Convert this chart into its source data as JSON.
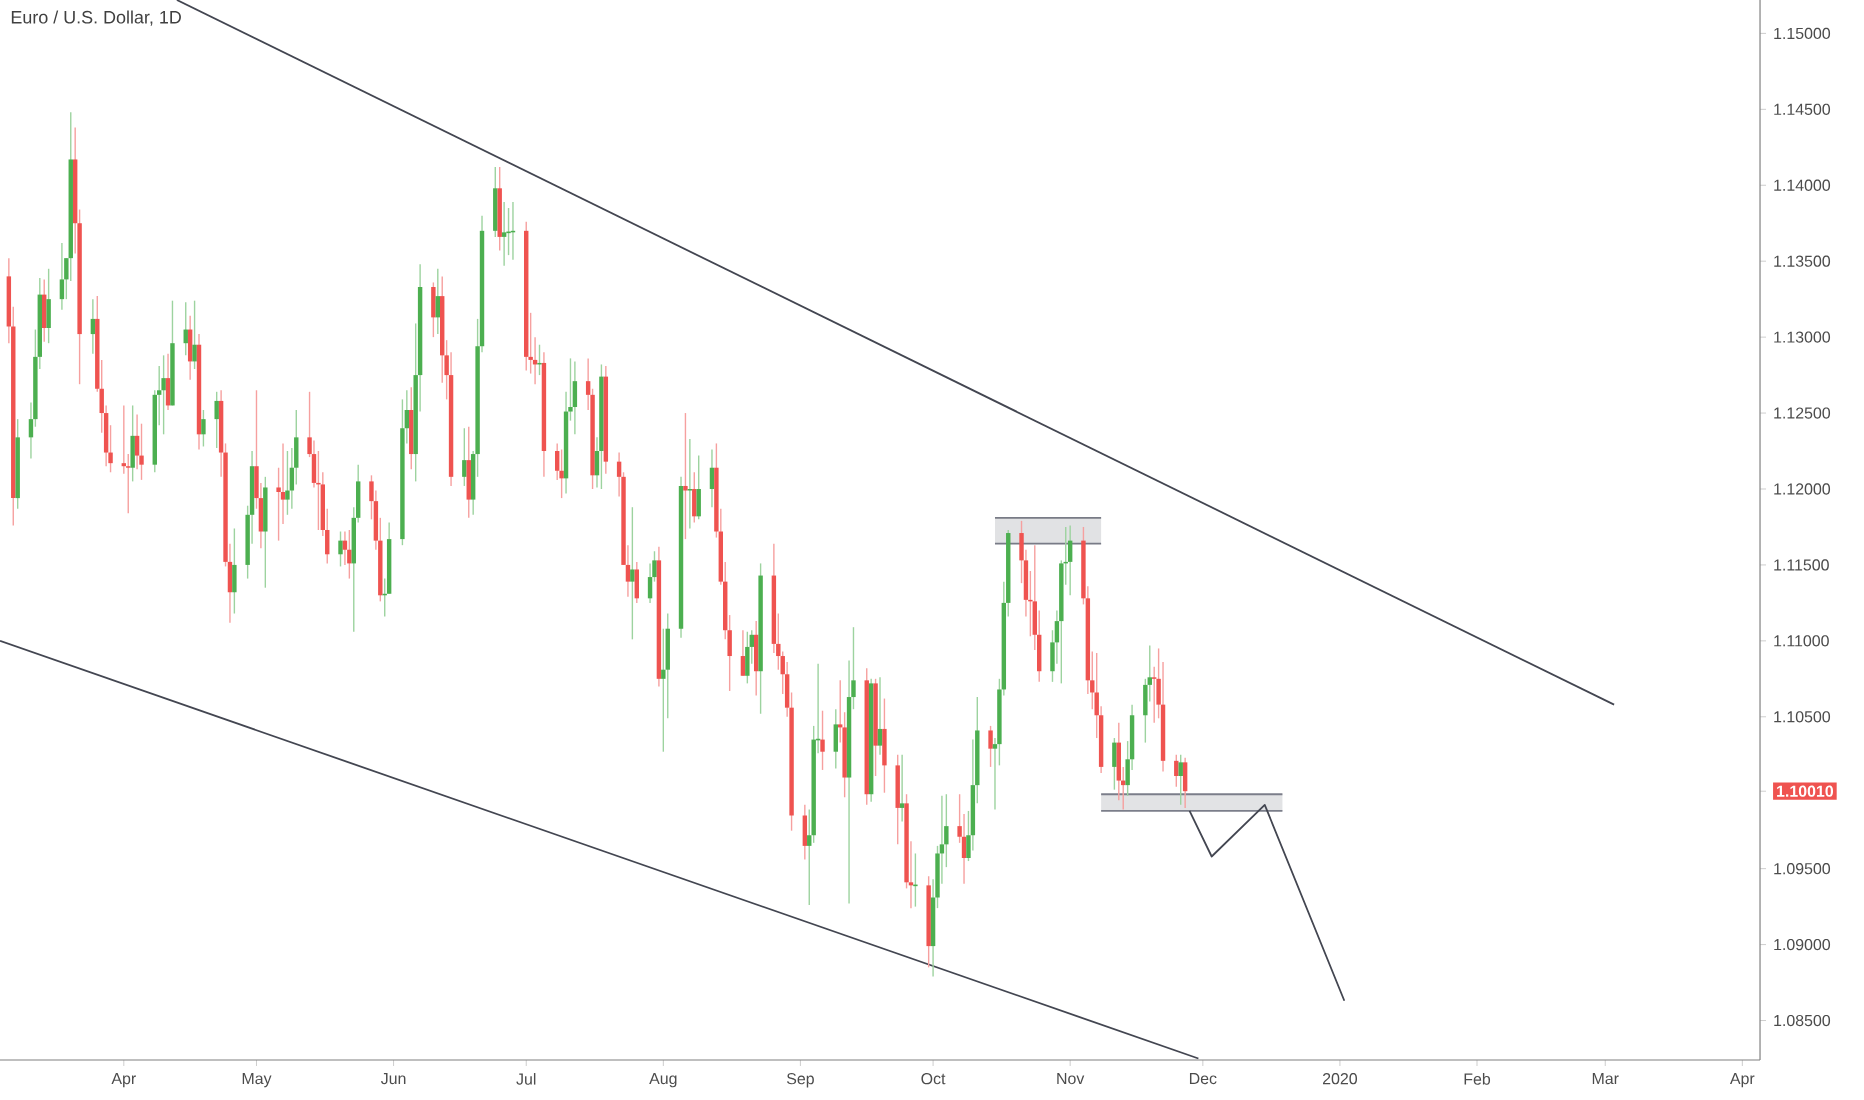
{
  "chart_data": {
    "type": "candlestick",
    "title": "Euro / U.S. Dollar, 1D",
    "colors": [
      "#ef5350",
      "#ef5350",
      "#4caf50",
      "#4caf50",
      "#4caf50",
      "#4caf50",
      "#ef5350",
      "#4caf50",
      "#4caf50",
      "#4caf50",
      "#4caf50",
      "#ef5350",
      "#ef5350",
      "#4caf50",
      "#ef5350",
      "#ef5350",
      "#ef5350",
      "#ef5350",
      "#ef5350",
      "#ef5350",
      "#4caf50",
      "#ef5350",
      "#ef5350",
      "#4caf50",
      "#4caf50",
      "#4caf50",
      "#ef5350",
      "#4caf50",
      "#4caf50",
      "#ef5350",
      "#4caf50",
      "#ef5350",
      "#4caf50",
      "#4caf50",
      "#ef5350",
      "#ef5350",
      "#ef5350",
      "#4caf50",
      "#4caf50",
      "#4caf50",
      "#ef5350",
      "#ef5350",
      "#4caf50",
      "#ef5350",
      "#ef5350",
      "#4caf50",
      "#4caf50",
      "#4caf50",
      "#ef5350",
      "#ef5350",
      "#ef5350",
      "#ef5350",
      "#ef5350",
      "#4caf50",
      "#ef5350",
      "#ef5350",
      "#4caf50",
      "#4caf50",
      "#ef5350",
      "#ef5350",
      "#ef5350",
      "#4caf50",
      "#4caf50",
      "#4caf50",
      "#4caf50",
      "#ef5350",
      "#4caf50",
      "#4caf50",
      "#ef5350",
      "#4caf50",
      "#ef5350",
      "#ef5350",
      "#ef5350",
      "#4caf50",
      "#ef5350",
      "#4caf50",
      "#4caf50",
      "#4caf50",
      "#4caf50",
      "#ef5350",
      "#4caf50",
      "#4caf50",
      "#4caf50",
      "#ef5350",
      "#ef5350",
      "#ef5350",
      "#4caf50",
      "#ef5350",
      "#ef5350",
      "#ef5350",
      "#4caf50",
      "#4caf50",
      "#4caf50",
      "#ef5350",
      "#ef5350",
      "#4caf50",
      "#4caf50",
      "#ef5350",
      "#ef5350",
      "#ef5350",
      "#ef5350",
      "#4caf50",
      "#ef5350",
      "#4caf50",
      "#4caf50",
      "#ef5350",
      "#4caf50",
      "#4caf50",
      "#4caf50",
      "#ef5350",
      "#4caf50",
      "#ef5350",
      "#4caf50",
      "#4caf50",
      "#ef5350",
      "#ef5350",
      "#ef5350",
      "#ef5350",
      "#ef5350",
      "#4caf50",
      "#4caf50",
      "#ef5350",
      "#4caf50",
      "#ef5350",
      "#ef5350",
      "#ef5350",
      "#ef5350",
      "#ef5350",
      "#ef5350",
      "#4caf50",
      "#4caf50",
      "#4caf50",
      "#ef5350",
      "#4caf50",
      "#ef5350",
      "#ef5350",
      "#4caf50",
      "#4caf50",
      "#ef5350",
      "#4caf50",
      "#ef5350",
      "#4caf50",
      "#ef5350",
      "#ef5350",
      "#4caf50",
      "#ef5350",
      "#ef5350",
      "#4caf50",
      "#ef5350",
      "#4caf50",
      "#4caf50",
      "#4caf50",
      "#4caf50",
      "#ef5350",
      "#ef5350",
      "#4caf50",
      "#4caf50",
      "#4caf50",
      "#ef5350",
      "#4caf50",
      "#4caf50",
      "#4caf50",
      "#4caf50",
      "#ef5350",
      "#ef5350",
      "#ef5350",
      "#ef5350",
      "#ef5350",
      "#4caf50",
      "#4caf50",
      "#4caf50",
      "#4caf50",
      "#4caf50",
      "#ef5350",
      "#ef5350",
      "#ef5350",
      "#ef5350",
      "#ef5350",
      "#4caf50",
      "#ef5350",
      "#ef5350",
      "#4caf50",
      "#4caf50",
      "#4caf50",
      "#4caf50",
      "#ef5350",
      "#ef5350",
      "#ef5350",
      "#ef5350",
      "#4caf50",
      "#ef5350"
    ],
    "xlim": [
      "2019-03-04",
      "2020-04-05"
    ],
    "ylim": [
      1.0824,
      1.1522
    ],
    "xticks": [
      {
        "value": "2019-04-01",
        "label": "Apr"
      },
      {
        "value": "2019-05-01",
        "label": "May"
      },
      {
        "value": "2019-06-01",
        "label": "Jun"
      },
      {
        "value": "2019-07-01",
        "label": "Jul"
      },
      {
        "value": "2019-08-01",
        "label": "Aug"
      },
      {
        "value": "2019-09-01",
        "label": "Sep"
      },
      {
        "value": "2019-10-01",
        "label": "Oct"
      },
      {
        "value": "2019-11-01",
        "label": "Nov"
      },
      {
        "value": "2019-12-01",
        "label": "Dec"
      },
      {
        "value": "2020-01-01",
        "label": "2020"
      },
      {
        "value": "2020-02-01",
        "label": "Feb"
      },
      {
        "value": "2020-03-01",
        "label": "Mar"
      },
      {
        "value": "2020-04-01",
        "label": "Apr"
      }
    ],
    "yticks": [
      {
        "value": 1.085,
        "label": "1.08500"
      },
      {
        "value": 1.09,
        "label": "1.09000"
      },
      {
        "value": 1.095,
        "label": "1.09500"
      },
      {
        "value": 1.1001,
        "label": "1.10010"
      },
      {
        "value": 1.105,
        "label": "1.10500"
      },
      {
        "value": 1.11,
        "label": "1.11000"
      },
      {
        "value": 1.115,
        "label": "1.11500"
      },
      {
        "value": 1.12,
        "label": "1.12000"
      },
      {
        "value": 1.125,
        "label": "1.12500"
      },
      {
        "value": 1.13,
        "label": "1.13000"
      },
      {
        "value": 1.135,
        "label": "1.13500"
      },
      {
        "value": 1.14,
        "label": "1.14000"
      },
      {
        "value": 1.145,
        "label": "1.14500"
      },
      {
        "value": 1.15,
        "label": "1.15000"
      }
    ],
    "x": [
      "2019-03-06",
      "2019-03-07",
      "2019-03-08",
      "2019-03-11",
      "2019-03-12",
      "2019-03-13",
      "2019-03-14",
      "2019-03-15",
      "2019-03-18",
      "2019-03-19",
      "2019-03-20",
      "2019-03-21",
      "2019-03-22",
      "2019-03-25",
      "2019-03-26",
      "2019-03-27",
      "2019-03-28",
      "2019-03-29",
      "2019-04-01",
      "2019-04-02",
      "2019-04-03",
      "2019-04-04",
      "2019-04-05",
      "2019-04-08",
      "2019-04-09",
      "2019-04-10",
      "2019-04-11",
      "2019-04-12",
      "2019-04-15",
      "2019-04-16",
      "2019-04-17",
      "2019-04-18",
      "2019-04-19",
      "2019-04-22",
      "2019-04-23",
      "2019-04-24",
      "2019-04-25",
      "2019-04-26",
      "2019-04-29",
      "2019-04-30",
      "2019-05-01",
      "2019-05-02",
      "2019-05-03",
      "2019-05-06",
      "2019-05-07",
      "2019-05-08",
      "2019-05-09",
      "2019-05-10",
      "2019-05-13",
      "2019-05-14",
      "2019-05-15",
      "2019-05-16",
      "2019-05-17",
      "2019-05-20",
      "2019-05-21",
      "2019-05-22",
      "2019-05-23",
      "2019-05-24",
      "2019-05-27",
      "2019-05-28",
      "2019-05-29",
      "2019-05-30",
      "2019-05-31",
      "2019-06-03",
      "2019-06-04",
      "2019-06-05",
      "2019-06-06",
      "2019-06-07",
      "2019-06-10",
      "2019-06-11",
      "2019-06-12",
      "2019-06-13",
      "2019-06-14",
      "2019-06-17",
      "2019-06-18",
      "2019-06-19",
      "2019-06-20",
      "2019-06-21",
      "2019-06-24",
      "2019-06-25",
      "2019-06-26",
      "2019-06-27",
      "2019-06-28",
      "2019-07-01",
      "2019-07-02",
      "2019-07-03",
      "2019-07-04",
      "2019-07-05",
      "2019-07-08",
      "2019-07-09",
      "2019-07-10",
      "2019-07-11",
      "2019-07-12",
      "2019-07-15",
      "2019-07-16",
      "2019-07-17",
      "2019-07-18",
      "2019-07-19",
      "2019-07-22",
      "2019-07-23",
      "2019-07-24",
      "2019-07-25",
      "2019-07-26",
      "2019-07-29",
      "2019-07-30",
      "2019-07-31",
      "2019-08-01",
      "2019-08-02",
      "2019-08-05",
      "2019-08-06",
      "2019-08-07",
      "2019-08-08",
      "2019-08-09",
      "2019-08-12",
      "2019-08-13",
      "2019-08-14",
      "2019-08-15",
      "2019-08-16",
      "2019-08-19",
      "2019-08-20",
      "2019-08-21",
      "2019-08-22",
      "2019-08-23",
      "2019-08-26",
      "2019-08-27",
      "2019-08-28",
      "2019-08-29",
      "2019-08-30",
      "2019-09-02",
      "2019-09-03",
      "2019-09-04",
      "2019-09-05",
      "2019-09-06",
      "2019-09-09",
      "2019-09-10",
      "2019-09-11",
      "2019-09-12",
      "2019-09-13",
      "2019-09-16",
      "2019-09-17",
      "2019-09-18",
      "2019-09-19",
      "2019-09-20",
      "2019-09-23",
      "2019-09-24",
      "2019-09-25",
      "2019-09-26",
      "2019-09-27",
      "2019-09-30",
      "2019-10-01",
      "2019-10-02",
      "2019-10-03",
      "2019-10-04",
      "2019-10-07",
      "2019-10-08",
      "2019-10-09",
      "2019-10-10",
      "2019-10-11",
      "2019-10-14",
      "2019-10-15",
      "2019-10-16",
      "2019-10-17",
      "2019-10-18",
      "2019-10-21",
      "2019-10-22",
      "2019-10-23",
      "2019-10-24",
      "2019-10-25",
      "2019-10-28",
      "2019-10-29",
      "2019-10-30",
      "2019-10-31",
      "2019-11-01",
      "2019-11-04",
      "2019-11-05",
      "2019-11-06",
      "2019-11-07",
      "2019-11-08",
      "2019-11-11",
      "2019-11-12",
      "2019-11-13",
      "2019-11-14",
      "2019-11-15",
      "2019-11-18",
      "2019-11-19",
      "2019-11-20",
      "2019-11-21",
      "2019-11-22",
      "2019-11-25",
      "2019-11-26",
      "2019-11-27"
    ],
    "ohlc": [
      [
        1.134,
        1.1352,
        1.1296,
        1.1307
      ],
      [
        1.1307,
        1.132,
        1.1176,
        1.1194
      ],
      [
        1.1194,
        1.1246,
        1.1187,
        1.1234
      ],
      [
        1.1234,
        1.1257,
        1.122,
        1.1246
      ],
      [
        1.1246,
        1.1305,
        1.1241,
        1.1287
      ],
      [
        1.1287,
        1.1339,
        1.1279,
        1.1328
      ],
      [
        1.1328,
        1.1338,
        1.1297,
        1.1306
      ],
      [
        1.1306,
        1.1345,
        1.1296,
        1.1325
      ],
      [
        1.1325,
        1.1362,
        1.1318,
        1.1338
      ],
      [
        1.1338,
        1.1352,
        1.1325,
        1.1352
      ],
      [
        1.1352,
        1.1448,
        1.1337,
        1.1417
      ],
      [
        1.1417,
        1.1438,
        1.1355,
        1.1375
      ],
      [
        1.1375,
        1.1384,
        1.1269,
        1.1302
      ],
      [
        1.1302,
        1.1325,
        1.1289,
        1.1312
      ],
      [
        1.1312,
        1.1327,
        1.1264,
        1.1266
      ],
      [
        1.1266,
        1.1285,
        1.1237,
        1.125
      ],
      [
        1.125,
        1.1255,
        1.1215,
        1.1224
      ],
      [
        1.1224,
        1.1242,
        1.1211,
        1.1217
      ],
      [
        1.1217,
        1.1255,
        1.121,
        1.1215
      ],
      [
        1.1215,
        1.1223,
        1.1184,
        1.1214
      ],
      [
        1.1214,
        1.1255,
        1.1205,
        1.1235
      ],
      [
        1.1235,
        1.1249,
        1.1213,
        1.1222
      ],
      [
        1.1222,
        1.1243,
        1.1206,
        1.1216
      ],
      [
        1.1216,
        1.1265,
        1.1211,
        1.1262
      ],
      [
        1.1262,
        1.1281,
        1.1242,
        1.1265
      ],
      [
        1.1265,
        1.1288,
        1.1236,
        1.1273
      ],
      [
        1.1273,
        1.1289,
        1.1252,
        1.1255
      ],
      [
        1.1255,
        1.1324,
        1.1255,
        1.1296
      ],
      [
        1.1296,
        1.1323,
        1.1288,
        1.1305
      ],
      [
        1.1305,
        1.1314,
        1.1272,
        1.1284
      ],
      [
        1.1284,
        1.1324,
        1.1279,
        1.1295
      ],
      [
        1.1295,
        1.1302,
        1.1226,
        1.1236
      ],
      [
        1.1236,
        1.1252,
        1.1228,
        1.1246
      ],
      [
        1.1246,
        1.1264,
        1.1227,
        1.1258
      ],
      [
        1.1258,
        1.1265,
        1.1208,
        1.1224
      ],
      [
        1.1224,
        1.123,
        1.1149,
        1.1152
      ],
      [
        1.1152,
        1.1164,
        1.1112,
        1.1132
      ],
      [
        1.1132,
        1.1174,
        1.1118,
        1.115
      ],
      [
        1.115,
        1.1189,
        1.1141,
        1.1183
      ],
      [
        1.1183,
        1.1225,
        1.1164,
        1.1215
      ],
      [
        1.1215,
        1.1265,
        1.1187,
        1.1194
      ],
      [
        1.1194,
        1.1204,
        1.1161,
        1.1172
      ],
      [
        1.1172,
        1.1208,
        1.1135,
        1.1201
      ],
      [
        1.1201,
        1.1214,
        1.1166,
        1.1198
      ],
      [
        1.1198,
        1.123,
        1.1177,
        1.1193
      ],
      [
        1.1193,
        1.1225,
        1.1183,
        1.1199
      ],
      [
        1.1199,
        1.1227,
        1.1187,
        1.1214
      ],
      [
        1.1214,
        1.1252,
        1.1203,
        1.1234
      ],
      [
        1.1234,
        1.1264,
        1.1221,
        1.1223
      ],
      [
        1.1223,
        1.1232,
        1.1201,
        1.1204
      ],
      [
        1.1204,
        1.1225,
        1.1173,
        1.1203
      ],
      [
        1.1203,
        1.1211,
        1.1169,
        1.1173
      ],
      [
        1.1173,
        1.1187,
        1.1151,
        1.1157
      ],
      [
        1.1157,
        1.1172,
        1.1149,
        1.1166
      ],
      [
        1.1166,
        1.1172,
        1.115,
        1.116
      ],
      [
        1.116,
        1.1173,
        1.1141,
        1.1151
      ],
      [
        1.1151,
        1.1188,
        1.1106,
        1.1181
      ],
      [
        1.1181,
        1.1216,
        1.1178,
        1.1205
      ],
      [
        1.1205,
        1.1209,
        1.118,
        1.1192
      ],
      [
        1.1192,
        1.1199,
        1.116,
        1.1166
      ],
      [
        1.1166,
        1.1181,
        1.1126,
        1.113
      ],
      [
        1.113,
        1.1141,
        1.1116,
        1.1131
      ],
      [
        1.1131,
        1.1178,
        1.1131,
        1.1167
      ],
      [
        1.1167,
        1.1259,
        1.1163,
        1.124
      ],
      [
        1.124,
        1.1265,
        1.123,
        1.1252
      ],
      [
        1.1252,
        1.1267,
        1.1213,
        1.1223
      ],
      [
        1.1223,
        1.1309,
        1.1205,
        1.1275
      ],
      [
        1.1275,
        1.1348,
        1.1251,
        1.1333
      ],
      [
        1.1333,
        1.1336,
        1.13,
        1.1313
      ],
      [
        1.1313,
        1.1345,
        1.1302,
        1.1327
      ],
      [
        1.1327,
        1.134,
        1.127,
        1.1288
      ],
      [
        1.1288,
        1.1298,
        1.1259,
        1.1275
      ],
      [
        1.1275,
        1.129,
        1.1202,
        1.1208
      ],
      [
        1.1208,
        1.124,
        1.1202,
        1.1219
      ],
      [
        1.1219,
        1.1241,
        1.1181,
        1.1193
      ],
      [
        1.1193,
        1.1225,
        1.1183,
        1.1223
      ],
      [
        1.1223,
        1.1312,
        1.1208,
        1.1294
      ],
      [
        1.1294,
        1.138,
        1.129,
        1.137
      ],
      [
        1.137,
        1.1412,
        1.1366,
        1.1398
      ],
      [
        1.1398,
        1.1412,
        1.1357,
        1.1366
      ],
      [
        1.1366,
        1.1389,
        1.1347,
        1.1369
      ],
      [
        1.1369,
        1.1385,
        1.1354,
        1.1369
      ],
      [
        1.1369,
        1.1389,
        1.1351,
        1.137
      ],
      [
        1.137,
        1.1376,
        1.1278,
        1.1287
      ],
      [
        1.1287,
        1.1316,
        1.1276,
        1.1285
      ],
      [
        1.1285,
        1.13,
        1.1269,
        1.1282
      ],
      [
        1.1282,
        1.1295,
        1.1275,
        1.1283
      ],
      [
        1.1283,
        1.129,
        1.1208,
        1.1225
      ],
      [
        1.1225,
        1.123,
        1.1206,
        1.1212
      ],
      [
        1.1212,
        1.1226,
        1.1194,
        1.1207
      ],
      [
        1.1207,
        1.1264,
        1.1197,
        1.1251
      ],
      [
        1.1251,
        1.1286,
        1.1245,
        1.1254
      ],
      [
        1.1254,
        1.1284,
        1.1236,
        1.1271
      ],
      [
        1.1271,
        1.1286,
        1.1252,
        1.1262
      ],
      [
        1.1262,
        1.1266,
        1.12,
        1.1209
      ],
      [
        1.1209,
        1.1234,
        1.1201,
        1.1225
      ],
      [
        1.1225,
        1.1282,
        1.12,
        1.1274
      ],
      [
        1.1274,
        1.1281,
        1.121,
        1.1218
      ],
      [
        1.1218,
        1.1224,
        1.1195,
        1.1208
      ],
      [
        1.1208,
        1.1211,
        1.115,
        1.115
      ],
      [
        1.115,
        1.1163,
        1.1129,
        1.1139
      ],
      [
        1.1139,
        1.1188,
        1.1101,
        1.1147
      ],
      [
        1.1147,
        1.1152,
        1.1125,
        1.1128
      ],
      [
        1.1128,
        1.1151,
        1.1125,
        1.1142
      ],
      [
        1.1142,
        1.1159,
        1.1139,
        1.1153
      ],
      [
        1.1153,
        1.1162,
        1.107,
        1.1075
      ],
      [
        1.1075,
        1.1108,
        1.1027,
        1.1081
      ],
      [
        1.1081,
        1.1118,
        1.1049,
        1.1108
      ],
      [
        1.1108,
        1.1208,
        1.1102,
        1.1202
      ],
      [
        1.1202,
        1.125,
        1.1167,
        1.1199
      ],
      [
        1.1199,
        1.1233,
        1.1174,
        1.12
      ],
      [
        1.12,
        1.1211,
        1.1178,
        1.1182
      ],
      [
        1.1182,
        1.1222,
        1.118,
        1.12
      ],
      [
        1.12,
        1.1226,
        1.1188,
        1.1214
      ],
      [
        1.1214,
        1.123,
        1.1168,
        1.1172
      ],
      [
        1.1172,
        1.1187,
        1.1137,
        1.1139
      ],
      [
        1.1139,
        1.1152,
        1.1101,
        1.1107
      ],
      [
        1.1107,
        1.1117,
        1.1067,
        1.109
      ],
      [
        1.109,
        1.1107,
        1.1077,
        1.1077
      ],
      [
        1.1077,
        1.1106,
        1.1072,
        1.1096
      ],
      [
        1.1096,
        1.1107,
        1.1085,
        1.1104
      ],
      [
        1.1104,
        1.1113,
        1.1064,
        1.108
      ],
      [
        1.108,
        1.1151,
        1.1052,
        1.1143
      ],
      [
        1.1143,
        1.1164,
        1.1092,
        1.1098
      ],
      [
        1.1098,
        1.1118,
        1.1081,
        1.109
      ],
      [
        1.109,
        1.1093,
        1.1065,
        1.1078
      ],
      [
        1.1078,
        1.1086,
        1.105,
        1.1056
      ],
      [
        1.1056,
        1.1066,
        1.0975,
        1.0985
      ],
      [
        1.0985,
        1.0992,
        1.0956,
        1.0965
      ],
      [
        1.0965,
        1.0989,
        1.0926,
        1.0972
      ],
      [
        1.0972,
        1.1044,
        1.0967,
        1.1035
      ],
      [
        1.1035,
        1.1085,
        1.1026,
        1.1035
      ],
      [
        1.1035,
        1.1054,
        1.1015,
        1.1027
      ],
      [
        1.1027,
        1.1055,
        1.1016,
        1.1045
      ],
      [
        1.1045,
        1.1074,
        1.1033,
        1.1043
      ],
      [
        1.1043,
        1.1053,
        1.0997,
        1.101
      ],
      [
        1.101,
        1.1087,
        1.0927,
        1.1063
      ],
      [
        1.1063,
        1.1109,
        1.1055,
        1.1074
      ],
      [
        1.1074,
        1.1082,
        1.0992,
        1.0999
      ],
      [
        1.0999,
        1.1075,
        1.0994,
        1.1072
      ],
      [
        1.1072,
        1.1075,
        1.1011,
        1.1031
      ],
      [
        1.1031,
        1.1076,
        1.1025,
        1.1042
      ],
      [
        1.1042,
        1.1062,
        1.1,
        1.1018
      ],
      [
        1.1018,
        1.1025,
        1.0966,
        1.099
      ],
      [
        1.099,
        1.1025,
        1.0981,
        1.0993
      ],
      [
        1.0993,
        1.0999,
        1.0937,
        1.0941
      ],
      [
        1.0941,
        1.0968,
        1.0924,
        1.0939
      ],
      [
        1.0939,
        1.096,
        1.0925,
        1.0939
      ],
      [
        1.0939,
        1.0945,
        1.0885,
        1.0899
      ],
      [
        1.0899,
        1.0943,
        1.0879,
        1.0931
      ],
      [
        1.0931,
        1.0965,
        1.0924,
        1.096
      ],
      [
        1.096,
        1.0998,
        1.094,
        1.0966
      ],
      [
        1.0966,
        1.0999,
        1.0951,
        1.0978
      ],
      [
        1.0978,
        1.0999,
        1.0967,
        1.0971
      ],
      [
        1.0971,
        1.0986,
        1.094,
        1.0957
      ],
      [
        1.0957,
        1.0988,
        1.0955,
        1.0972
      ],
      [
        1.0972,
        1.1035,
        1.0962,
        1.1005
      ],
      [
        1.1005,
        1.1063,
        1.0993,
        1.1041
      ],
      [
        1.1041,
        1.1044,
        1.1017,
        1.1029
      ],
      [
        1.1029,
        1.1036,
        1.0989,
        1.1032
      ],
      [
        1.1032,
        1.1075,
        1.1018,
        1.1068
      ],
      [
        1.1068,
        1.1139,
        1.1064,
        1.1125
      ],
      [
        1.1125,
        1.1173,
        1.1116,
        1.1171
      ],
      [
        1.1171,
        1.1179,
        1.1138,
        1.1153
      ],
      [
        1.1153,
        1.116,
        1.1116,
        1.1127
      ],
      [
        1.1127,
        1.1146,
        1.1103,
        1.1126
      ],
      [
        1.1126,
        1.1163,
        1.1094,
        1.1104
      ],
      [
        1.1104,
        1.112,
        1.1073,
        1.108
      ],
      [
        1.108,
        1.1107,
        1.1073,
        1.1099
      ],
      [
        1.1099,
        1.112,
        1.1085,
        1.1113
      ],
      [
        1.1113,
        1.1153,
        1.1072,
        1.1151
      ],
      [
        1.1151,
        1.1175,
        1.1137,
        1.1152
      ],
      [
        1.1152,
        1.1176,
        1.113,
        1.1166
      ],
      [
        1.1166,
        1.1175,
        1.1124,
        1.1128
      ],
      [
        1.1128,
        1.1136,
        1.1065,
        1.1074
      ],
      [
        1.1074,
        1.1093,
        1.1055,
        1.1066
      ],
      [
        1.1066,
        1.1092,
        1.1036,
        1.1051
      ],
      [
        1.1051,
        1.1057,
        1.1013,
        1.1017
      ],
      [
        1.1017,
        1.1036,
        1.1002,
        1.1033
      ],
      [
        1.1033,
        1.1046,
        1.0995,
        1.1008
      ],
      [
        1.1008,
        1.1017,
        1.0989,
        1.1005
      ],
      [
        1.1005,
        1.1034,
        1.0998,
        1.1022
      ],
      [
        1.1022,
        1.1058,
        1.1015,
        1.1051
      ],
      [
        1.1051,
        1.1075,
        1.1033,
        1.1071
      ],
      [
        1.1071,
        1.1097,
        1.106,
        1.1076
      ],
      [
        1.1076,
        1.1083,
        1.1046,
        1.1075
      ],
      [
        1.1075,
        1.1095,
        1.1049,
        1.1058
      ],
      [
        1.1058,
        1.1086,
        1.1014,
        1.1021
      ],
      [
        1.1021,
        1.1025,
        1.1004,
        1.1011
      ],
      [
        1.1011,
        1.1025,
        1.0992,
        1.102
      ],
      [
        1.102,
        1.1023,
        1.099,
        1.1001
      ]
    ],
    "series": [
      {
        "type": "line",
        "color": "#434651",
        "x": [
          "2019-04-13",
          "2020-03-03"
        ],
        "values": [
          1.1522,
          1.1058
        ]
      },
      {
        "type": "line",
        "color": "#434651",
        "x": [
          "2019-03-04",
          "2019-11-30"
        ],
        "values": [
          1.11,
          1.0825
        ]
      },
      {
        "type": "line",
        "color": "#787b86",
        "x": [
          "2019-10-15",
          "2019-11-08"
        ],
        "values": [
          1.1181,
          1.1181
        ],
        "lower": [
          1.1164,
          1.1164
        ],
        "upper": [
          1.1181,
          1.1181
        ]
      },
      {
        "type": "line",
        "color": "#7b7e8a",
        "x": [
          "2019-11-08",
          "2019-12-19"
        ],
        "values": [
          1.0999,
          1.0999
        ],
        "lower": [
          1.0988,
          1.0988
        ],
        "upper": [
          1.0999,
          1.0999
        ]
      },
      {
        "type": "line",
        "color": "#787b86",
        "x": [
          "2019-10-15",
          "2019-11-08"
        ],
        "values": [
          1.1164,
          1.1164
        ]
      },
      {
        "type": "line",
        "color": "#7b7e8a",
        "x": [
          "2019-11-08",
          "2019-12-19"
        ],
        "values": [
          1.0988,
          1.0988
        ]
      },
      {
        "type": "line",
        "color": "#434651",
        "x": [
          "2019-11-28",
          "2019-12-03",
          "2019-12-15",
          "2020-01-02"
        ],
        "values": [
          1.0988,
          1.0958,
          1.0992,
          1.0863
        ]
      }
    ]
  }
}
